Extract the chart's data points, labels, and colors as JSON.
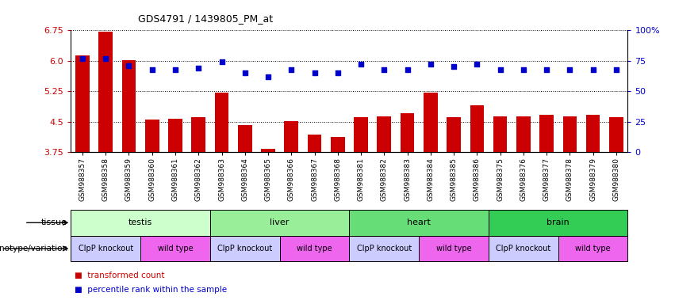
{
  "title": "GDS4791 / 1439805_PM_at",
  "samples": [
    "GSM988357",
    "GSM988358",
    "GSM988359",
    "GSM988360",
    "GSM988361",
    "GSM988362",
    "GSM988363",
    "GSM988364",
    "GSM988365",
    "GSM988366",
    "GSM988367",
    "GSM988368",
    "GSM988381",
    "GSM988382",
    "GSM988383",
    "GSM988384",
    "GSM988385",
    "GSM988386",
    "GSM988375",
    "GSM988376",
    "GSM988377",
    "GSM988378",
    "GSM988379",
    "GSM988380"
  ],
  "bar_values": [
    6.13,
    6.72,
    6.02,
    4.55,
    4.58,
    4.61,
    5.22,
    4.42,
    3.82,
    4.52,
    4.17,
    4.12,
    4.6,
    4.62,
    4.71,
    5.22,
    4.6,
    4.91,
    4.62,
    4.63,
    4.67,
    4.63,
    4.67,
    4.61
  ],
  "dot_values": [
    77,
    77,
    71,
    68,
    68,
    69,
    74,
    65,
    62,
    68,
    65,
    65,
    72,
    68,
    68,
    72,
    70,
    72,
    68,
    68,
    68,
    68,
    68,
    68
  ],
  "ylim_left": [
    3.75,
    6.75
  ],
  "ylim_right": [
    0,
    100
  ],
  "yticks_left": [
    3.75,
    4.5,
    5.25,
    6.0,
    6.75
  ],
  "yticks_right": [
    0,
    25,
    50,
    75,
    100
  ],
  "bar_color": "#cc0000",
  "dot_color": "#0000cc",
  "bar_width": 0.6,
  "tissue_groups": [
    {
      "label": "testis",
      "start": 0,
      "end": 5,
      "color": "#ccffcc"
    },
    {
      "label": "liver",
      "start": 6,
      "end": 11,
      "color": "#99ee99"
    },
    {
      "label": "heart",
      "start": 12,
      "end": 17,
      "color": "#66dd77"
    },
    {
      "label": "brain",
      "start": 18,
      "end": 23,
      "color": "#33cc55"
    }
  ],
  "genotype_groups": [
    {
      "label": "ClpP knockout",
      "start": 0,
      "end": 2,
      "color": "#ccccff"
    },
    {
      "label": "wild type",
      "start": 3,
      "end": 5,
      "color": "#ee66ee"
    },
    {
      "label": "ClpP knockout",
      "start": 6,
      "end": 8,
      "color": "#ccccff"
    },
    {
      "label": "wild type",
      "start": 9,
      "end": 11,
      "color": "#ee66ee"
    },
    {
      "label": "ClpP knockout",
      "start": 12,
      "end": 14,
      "color": "#ccccff"
    },
    {
      "label": "wild type",
      "start": 15,
      "end": 17,
      "color": "#ee66ee"
    },
    {
      "label": "ClpP knockout",
      "start": 18,
      "end": 20,
      "color": "#ccccff"
    },
    {
      "label": "wild type",
      "start": 21,
      "end": 23,
      "color": "#ee66ee"
    }
  ],
  "tissue_row_label": "tissue",
  "genotype_row_label": "genotype/variation",
  "legend_bar_label": "transformed count",
  "legend_dot_label": "percentile rank within the sample"
}
